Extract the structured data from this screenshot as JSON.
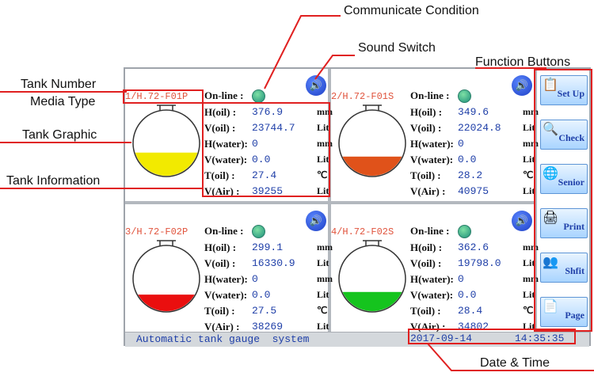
{
  "callouts": {
    "communicate": "Communicate Condition",
    "sound": "Sound Switch",
    "function": "Function Buttons",
    "tank_number": "Tank Number",
    "media_type": "Media Type",
    "tank_graphic": "Tank Graphic",
    "tank_info": "Tank Information",
    "date_time": "Date & Time"
  },
  "labels": {
    "online": "On-line :",
    "h_oil": "H(oil) :",
    "v_oil": "V(oil) :",
    "h_water": "H(water):",
    "v_water": "V(water):",
    "t_oil": "T(oil) :",
    "v_air": "V(Air) :",
    "unit_mm": "mm",
    "unit_lit": "Lit",
    "unit_c": "℃"
  },
  "tanks": [
    {
      "id": "1/H.72-F01P",
      "h_oil": "376.9",
      "v_oil": "23744.7",
      "h_water": "0",
      "v_water": "0.0",
      "t_oil": "27.4",
      "v_air": "39255",
      "fill_level": 0.36,
      "color": "#f2ea00"
    },
    {
      "id": "2/H.72-F01S",
      "h_oil": "349.6",
      "v_oil": "22024.8",
      "h_water": "0",
      "v_water": "0.0",
      "t_oil": "28.2",
      "v_air": "40975",
      "fill_level": 0.3,
      "color": "#e0521a"
    },
    {
      "id": "3/H.72-F02P",
      "h_oil": "299.1",
      "v_oil": "16330.9",
      "h_water": "0",
      "v_water": "0.0",
      "t_oil": "27.5",
      "v_air": "38269",
      "fill_level": 0.26,
      "color": "#ea0f0f"
    },
    {
      "id": "4/H.72-F02S",
      "h_oil": "362.6",
      "v_oil": "19798.0",
      "h_water": "0",
      "v_water": "0.0",
      "t_oil": "28.4",
      "v_air": "34802",
      "fill_level": 0.3,
      "color": "#15c41e"
    }
  ],
  "buttons": [
    "Set Up",
    "Check",
    "Senior",
    "Print",
    "Shfit",
    "Page"
  ],
  "button_icons": [
    "settings-icon",
    "search-icon",
    "globe-icon",
    "printer-icon",
    "people-icon",
    "page-icon"
  ],
  "status": {
    "system": "Automatic tank gauge  system",
    "date": "2017-09-14",
    "time": "14:35:35"
  }
}
